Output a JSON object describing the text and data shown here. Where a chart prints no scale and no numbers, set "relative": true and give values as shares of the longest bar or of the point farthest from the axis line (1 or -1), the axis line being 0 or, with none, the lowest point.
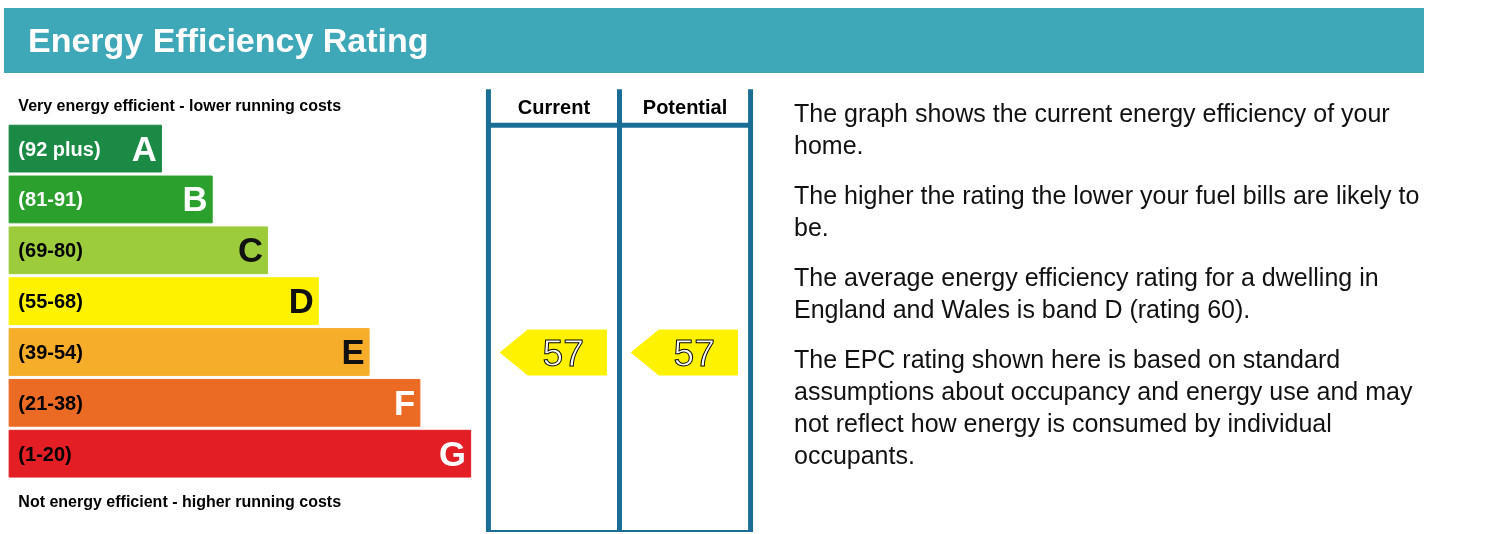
{
  "chart_data": [
    {
      "type": "bar",
      "title": "Energy Efficiency Rating",
      "orientation": "horizontal",
      "relative": true,
      "categories": [
        "(92 plus)",
        "(81-91)",
        "(69-80)",
        "(55-68)",
        "(39-54)",
        "(21-38)",
        "(1-20)"
      ],
      "values": [
        0.33,
        0.44,
        0.56,
        0.67,
        0.78,
        0.89,
        1.0
      ],
      "colors": [
        "#1a8a44",
        "#2ca02c",
        "#9ccb3c",
        "#fff200",
        "#f5ad2a",
        "#ec6b24",
        "#e31e24"
      ],
      "annotations": [
        "Very energy efficient - lower running costs",
        "Not energy efficient - higher running costs",
        {
          "text": "A",
          "x": 0.33,
          "y": "(92 plus)"
        },
        {
          "text": "B",
          "x": 0.44,
          "y": "(81-91)"
        },
        {
          "text": "C",
          "x": 0.56,
          "y": "(69-80)"
        },
        {
          "text": "D",
          "x": 0.67,
          "y": "(55-68)"
        },
        {
          "text": "E",
          "x": 0.78,
          "y": "(39-54)"
        },
        {
          "text": "F",
          "x": 0.89,
          "y": "(21-38)"
        },
        {
          "text": "G",
          "x": 1.0,
          "y": "(1-20)"
        }
      ]
    },
    {
      "type": "other",
      "categories": [
        "Current",
        "Potential"
      ],
      "values": [
        57,
        57
      ],
      "color": "#fff200",
      "data_labels": true
    },
    {
      "type": "other",
      "annotations": [
        "The graph shows the current energy efficiency of your home.",
        "The higher the rating the lower your fuel bills are likely to be.",
        "The average energy efficiency rating for a dwelling in England and Wales is band D (rating 60).",
        "The EPC rating shown here is based on standard assumptions about occupancy and energy use and may not reflect how energy is consumed by individual occupants."
      ]
    }
  ]
}
